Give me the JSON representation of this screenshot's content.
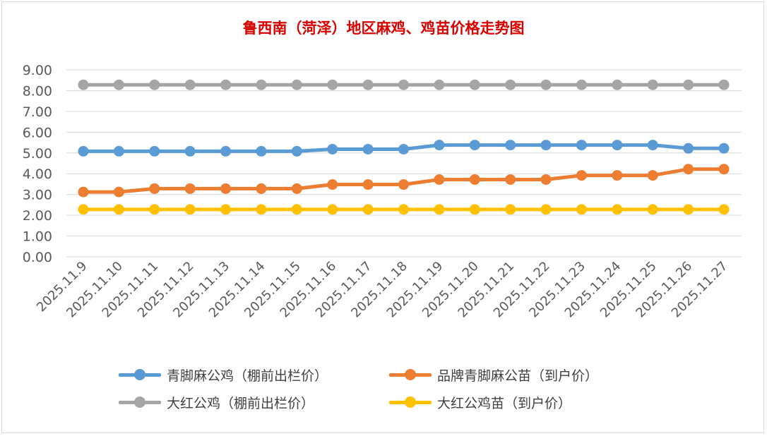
{
  "chart_data": {
    "type": "line",
    "title": "鲁西南（菏泽）地区麻鸡、鸡苗价格走势图",
    "categories": [
      "2025.11.9",
      "2025.11.10",
      "2025.11.11",
      "2025.11.12",
      "2025.11.13",
      "2025.11.14",
      "2025.11.15",
      "2025.11.16",
      "2025.11.17",
      "2025.11.18",
      "2025.11.19",
      "2025.11.20",
      "2025.11.21",
      "2025.11.22",
      "2025.11.23",
      "2025.11.24",
      "2025.11.25",
      "2025.11.26",
      "2025.11.27"
    ],
    "y_ticks": [
      "0.00",
      "1.00",
      "2.00",
      "3.00",
      "4.00",
      "5.00",
      "6.00",
      "7.00",
      "8.00",
      "9.00"
    ],
    "ylim": [
      0,
      9
    ],
    "grid": true,
    "legend_position": "bottom",
    "series": [
      {
        "name": "青脚麻公鸡（棚前出栏价）",
        "color": "#5b9bd5",
        "values": [
          5.08,
          5.08,
          5.08,
          5.08,
          5.08,
          5.08,
          5.08,
          5.18,
          5.18,
          5.18,
          5.38,
          5.38,
          5.38,
          5.38,
          5.38,
          5.38,
          5.38,
          5.22,
          5.22
        ]
      },
      {
        "name": "品牌青脚麻公苗（到户价）",
        "color": "#ed7d31",
        "values": [
          3.12,
          3.12,
          3.28,
          3.28,
          3.28,
          3.28,
          3.28,
          3.48,
          3.48,
          3.48,
          3.72,
          3.72,
          3.72,
          3.72,
          3.92,
          3.92,
          3.92,
          4.22,
          4.22
        ]
      },
      {
        "name": "大红公鸡（棚前出栏价）",
        "color": "#a5a5a5",
        "values": [
          8.28,
          8.28,
          8.28,
          8.28,
          8.28,
          8.28,
          8.28,
          8.28,
          8.28,
          8.28,
          8.28,
          8.28,
          8.28,
          8.28,
          8.28,
          8.28,
          8.28,
          8.28,
          8.28
        ]
      },
      {
        "name": "大红公鸡苗（到户价）",
        "color": "#ffc000",
        "values": [
          2.28,
          2.28,
          2.28,
          2.28,
          2.28,
          2.28,
          2.28,
          2.28,
          2.28,
          2.28,
          2.28,
          2.28,
          2.28,
          2.28,
          2.28,
          2.28,
          2.28,
          2.28,
          2.28
        ]
      }
    ]
  }
}
